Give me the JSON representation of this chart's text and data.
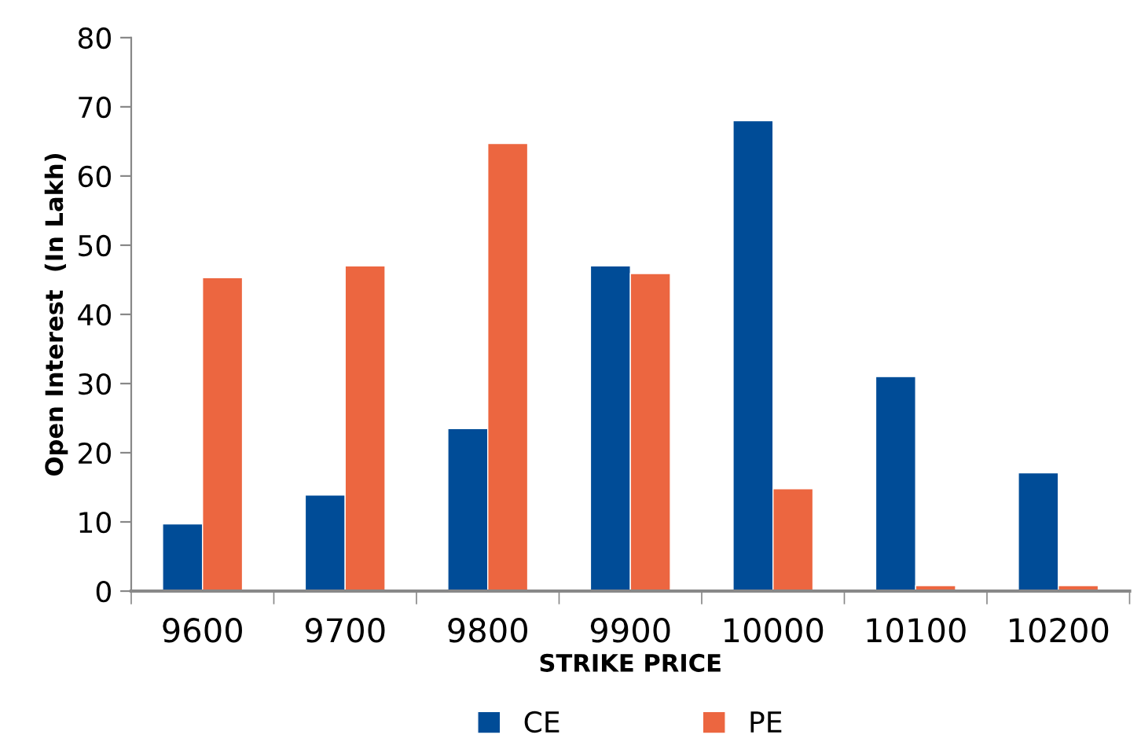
{
  "chart_data": {
    "type": "bar",
    "xlabel": "STRIKE PRICE",
    "ylabel": "Open Interest  (In Lakh)",
    "categories": [
      "9600",
      "9700",
      "9800",
      "9900",
      "10000",
      "10100",
      "10200"
    ],
    "series": [
      {
        "name": "CE",
        "color": "#004c97",
        "values": [
          9.7,
          13.9,
          23.5,
          47,
          68,
          31,
          17.1
        ]
      },
      {
        "name": "PE",
        "color": "#ec6640",
        "values": [
          45.3,
          47,
          64.7,
          45.9,
          14.8,
          0.8,
          0.8
        ]
      }
    ],
    "ylim": [
      0,
      80
    ],
    "yticks": [
      0,
      10,
      20,
      30,
      40,
      50,
      60,
      70,
      80
    ],
    "grid": false,
    "legend": "bottom"
  }
}
